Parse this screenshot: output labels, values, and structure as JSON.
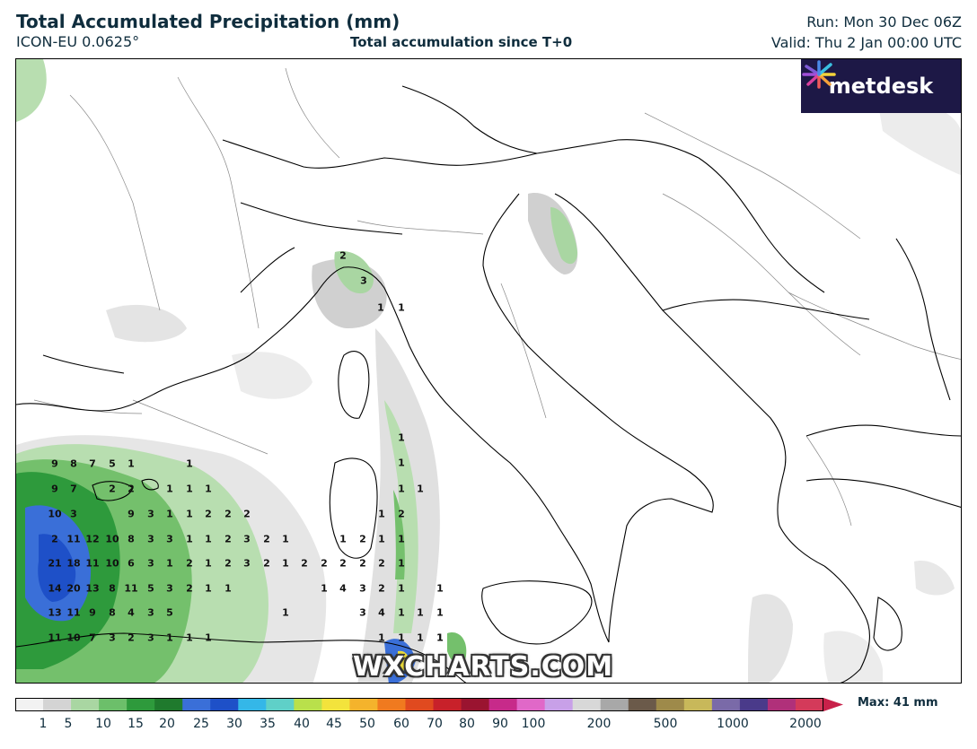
{
  "header": {
    "title": "Total Accumulated Precipitation (mm)",
    "model": "ICON-EU 0.0625°",
    "subtitle": "Total accumulation since T+0",
    "run": "Run: Mon 30 Dec 06Z",
    "valid": "Valid: Thu 2 Jan 00:00 UTC"
  },
  "logo": {
    "text": "metdesk",
    "icon": "metdesk-flower-icon"
  },
  "watermark": "WXCHARTS.COM",
  "colorbar": {
    "max_label": "Max: 41 mm",
    "tick_labels": [
      "1",
      "5",
      "10",
      "15",
      "20",
      "25",
      "30",
      "35",
      "40",
      "45",
      "50",
      "60",
      "70",
      "80",
      "90",
      "100",
      "200",
      "500",
      "1000",
      "2000"
    ],
    "colors": [
      "#f2f2f2",
      "#d4d4d4",
      "#a9d6a2",
      "#6cbf6a",
      "#2e9a3c",
      "#1f7a2d",
      "#3a6fd8",
      "#1e50c8",
      "#34b7e8",
      "#5fd0c8",
      "#b9e04b",
      "#f3e33c",
      "#f4b32c",
      "#f07a1f",
      "#e04a1f",
      "#c8212a",
      "#9a1430",
      "#c72a8a",
      "#e068c8",
      "#c8a0e8",
      "#d8d8d8",
      "#a8a8a8",
      "#6b5a4a",
      "#9e8a4a",
      "#c8b85a",
      "#7a6aa8",
      "#4a3a8a",
      "#b0307a",
      "#d43a5a"
    ]
  },
  "map_values": [
    {
      "t": "2"
    },
    {
      "t": "3"
    },
    {
      "t": "1"
    },
    {
      "t": "1"
    },
    {
      "t": "9"
    },
    {
      "t": "8"
    },
    {
      "t": "7"
    },
    {
      "t": "5"
    },
    {
      "t": "1"
    },
    {
      "t": "1"
    },
    {
      "t": "9"
    },
    {
      "t": "7"
    },
    {
      "t": "2"
    },
    {
      "t": "2"
    },
    {
      "t": "1"
    },
    {
      "t": "1"
    },
    {
      "t": "1"
    },
    {
      "t": "10"
    },
    {
      "t": "3"
    },
    {
      "t": "9"
    },
    {
      "t": "3"
    },
    {
      "t": "1"
    },
    {
      "t": "1"
    },
    {
      "t": "2"
    },
    {
      "t": "2"
    },
    {
      "t": "2"
    },
    {
      "t": "2"
    },
    {
      "t": "11"
    },
    {
      "t": "12"
    },
    {
      "t": "10"
    },
    {
      "t": "8"
    },
    {
      "t": "3"
    },
    {
      "t": "3"
    },
    {
      "t": "1"
    },
    {
      "t": "1"
    },
    {
      "t": "2"
    },
    {
      "t": "3"
    },
    {
      "t": "2"
    },
    {
      "t": "1"
    },
    {
      "t": "21"
    },
    {
      "t": "18"
    },
    {
      "t": "11"
    },
    {
      "t": "10"
    },
    {
      "t": "6"
    },
    {
      "t": "3"
    },
    {
      "t": "1"
    },
    {
      "t": "2"
    },
    {
      "t": "1"
    },
    {
      "t": "2"
    },
    {
      "t": "3"
    },
    {
      "t": "2"
    },
    {
      "t": "1"
    },
    {
      "t": "2"
    },
    {
      "t": "2"
    },
    {
      "t": "2"
    },
    {
      "t": "2"
    },
    {
      "t": "2"
    },
    {
      "t": "1"
    },
    {
      "t": "14"
    },
    {
      "t": "20"
    },
    {
      "t": "13"
    },
    {
      "t": "8"
    },
    {
      "t": "11"
    },
    {
      "t": "5"
    },
    {
      "t": "3"
    },
    {
      "t": "2"
    },
    {
      "t": "1"
    },
    {
      "t": "1"
    },
    {
      "t": "13"
    },
    {
      "t": "11"
    },
    {
      "t": "9"
    },
    {
      "t": "8"
    },
    {
      "t": "4"
    },
    {
      "t": "3"
    },
    {
      "t": "5"
    },
    {
      "t": "1"
    },
    {
      "t": "11"
    },
    {
      "t": "10"
    },
    {
      "t": "7"
    },
    {
      "t": "3"
    },
    {
      "t": "2"
    },
    {
      "t": "3"
    },
    {
      "t": "1"
    },
    {
      "t": "1"
    },
    {
      "t": "1"
    },
    {
      "t": "1"
    },
    {
      "t": "4"
    },
    {
      "t": "3"
    },
    {
      "t": "2"
    },
    {
      "t": "1"
    },
    {
      "t": "1"
    },
    {
      "t": "3"
    },
    {
      "t": "4"
    },
    {
      "t": "1"
    },
    {
      "t": "1"
    },
    {
      "t": "1"
    },
    {
      "t": "1"
    },
    {
      "t": "1"
    },
    {
      "t": "1"
    },
    {
      "t": "1"
    },
    {
      "t": "1"
    },
    {
      "t": "1"
    },
    {
      "t": "1"
    },
    {
      "t": "1"
    },
    {
      "t": "2"
    },
    {
      "t": "1"
    },
    {
      "t": "2"
    },
    {
      "t": "1"
    },
    {
      "t": "1"
    },
    {
      "t": "1"
    },
    {
      "t": "1"
    }
  ]
}
